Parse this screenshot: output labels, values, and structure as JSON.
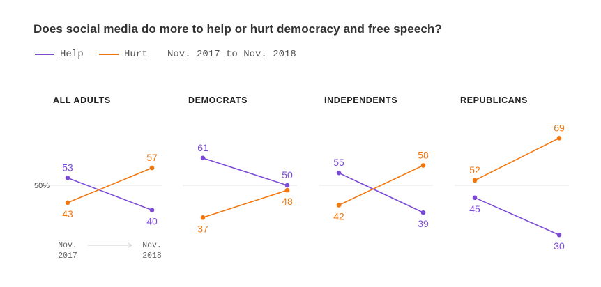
{
  "chart_data": {
    "type": "line",
    "title": "Does social media do more to help or hurt democracy and free speech?",
    "legend": {
      "series": [
        {
          "name": "Help",
          "color": "#7b4bd6"
        },
        {
          "name": "Hurt",
          "color": "#f2770f"
        }
      ],
      "period": "Nov. 2017 to Nov. 2018"
    },
    "reference_line": {
      "value": 50,
      "label": "50%"
    },
    "x_labels": {
      "start": [
        "Nov.",
        "2017"
      ],
      "end": [
        "Nov.",
        "2018"
      ]
    },
    "x": [
      "Nov. 2017",
      "Nov. 2018"
    ],
    "ylim": [
      25,
      75
    ],
    "panels": [
      {
        "title": "ALL ADULTS",
        "series": [
          {
            "name": "Help",
            "values": [
              53,
              40
            ]
          },
          {
            "name": "Hurt",
            "values": [
              43,
              57
            ]
          }
        ]
      },
      {
        "title": "DEMOCRATS",
        "series": [
          {
            "name": "Help",
            "values": [
              61,
              50
            ]
          },
          {
            "name": "Hurt",
            "values": [
              37,
              48
            ]
          }
        ]
      },
      {
        "title": "INDEPENDENTS",
        "series": [
          {
            "name": "Help",
            "values": [
              55,
              39
            ]
          },
          {
            "name": "Hurt",
            "values": [
              42,
              58
            ]
          }
        ]
      },
      {
        "title": "REPUBLICANS",
        "series": [
          {
            "name": "Help",
            "values": [
              45,
              30
            ]
          },
          {
            "name": "Hurt",
            "values": [
              52,
              69
            ]
          }
        ]
      }
    ]
  }
}
